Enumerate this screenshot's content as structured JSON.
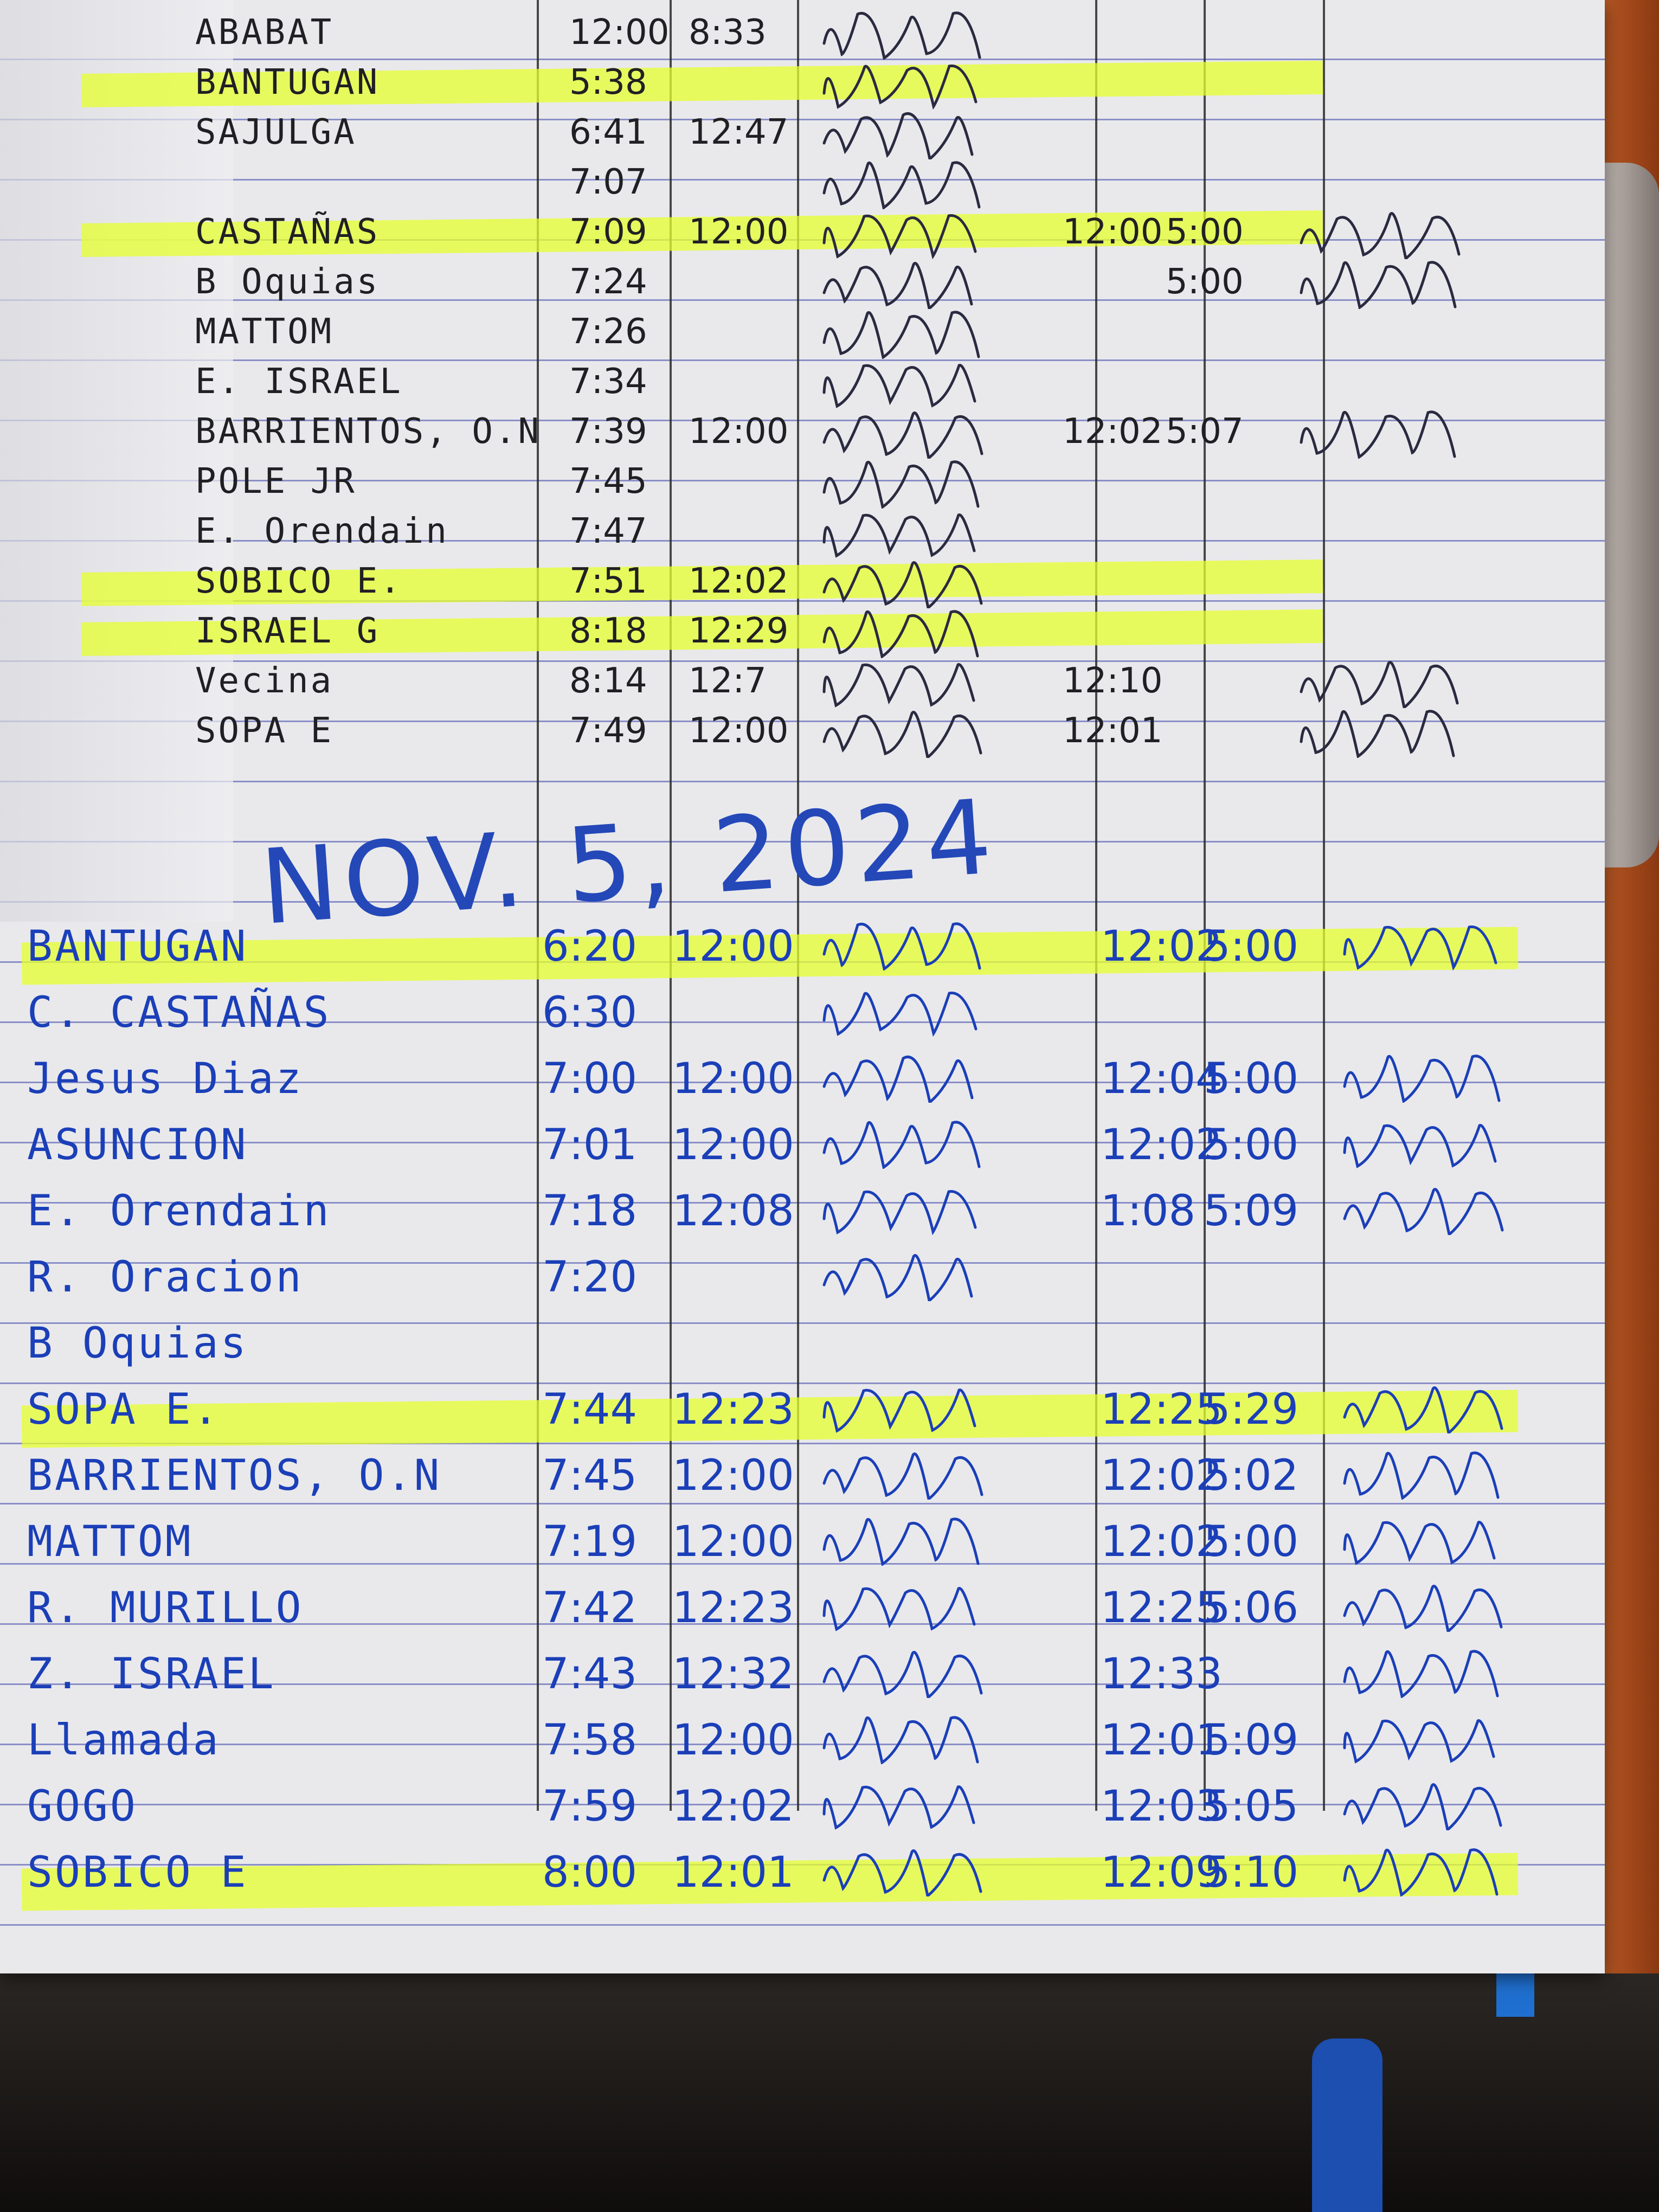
{
  "colors": {
    "ink_top": "#202024",
    "ink_bottom": "#1b3fb8",
    "highlighter": "#e6ff2e",
    "cover": "#1f6fd0"
  },
  "top_rows": [
    {
      "name": "ABABAT",
      "in": "12:00",
      "out": "8:33",
      "in2": "",
      "out2": "",
      "highlight": false
    },
    {
      "name": "BANTUGAN",
      "in": "5:38",
      "out": "",
      "in2": "",
      "out2": "",
      "highlight": true
    },
    {
      "name": "SAJULGA",
      "in": "6:41",
      "out": "12:47",
      "in2": "",
      "out2": "",
      "highlight": false
    },
    {
      "name": "",
      "in": "7:07",
      "out": "",
      "in2": "",
      "out2": "",
      "highlight": false
    },
    {
      "name": "CASTAÑAS",
      "in": "7:09",
      "out": "12:00",
      "in2": "12:00",
      "out2": "5:00",
      "highlight": true
    },
    {
      "name": "B Oquias",
      "in": "7:24",
      "out": "",
      "in2": "",
      "out2": "5:00",
      "highlight": false
    },
    {
      "name": "MATTOM",
      "in": "7:26",
      "out": "",
      "in2": "",
      "out2": "",
      "highlight": false
    },
    {
      "name": "E. ISRAEL",
      "in": "7:34",
      "out": "",
      "in2": "",
      "out2": "",
      "highlight": false
    },
    {
      "name": "BARRIENTOS, O.N",
      "in": "7:39",
      "out": "12:00",
      "in2": "12:02",
      "out2": "5:07",
      "highlight": false
    },
    {
      "name": "POLE JR",
      "in": "7:45",
      "out": "",
      "in2": "",
      "out2": "",
      "highlight": false
    },
    {
      "name": "E. Orendain",
      "in": "7:47",
      "out": "",
      "in2": "",
      "out2": "",
      "highlight": false
    },
    {
      "name": "SOBICO E.",
      "in": "7:51",
      "out": "12:02",
      "in2": "",
      "out2": "",
      "highlight": true
    },
    {
      "name": "ISRAEL G",
      "in": "8:18",
      "out": "12:29",
      "in2": "",
      "out2": "",
      "highlight": true
    },
    {
      "name": "Vecina",
      "in": "8:14",
      "out": "12:7",
      "in2": "12:10",
      "out2": "",
      "highlight": false
    },
    {
      "name": "SOPA E",
      "in": "7:49",
      "out": "12:00",
      "in2": "12:01",
      "out2": "",
      "highlight": false
    }
  ],
  "date_heading": "NOV. 5, 2024",
  "bottom_rows": [
    {
      "name": "BANTUGAN",
      "in": "6:20",
      "out": "12:00",
      "in2": "12:02",
      "out2": "5:00",
      "highlight": true
    },
    {
      "name": "C. CASTAÑAS",
      "in": "6:30",
      "out": "",
      "in2": "",
      "out2": "",
      "highlight": false
    },
    {
      "name": "Jesus Diaz",
      "in": "7:00",
      "out": "12:00",
      "in2": "12:04",
      "out2": "5:00",
      "highlight": false
    },
    {
      "name": "ASUNCION",
      "in": "7:01",
      "out": "12:00",
      "in2": "12:02",
      "out2": "5:00",
      "highlight": false
    },
    {
      "name": "E. Orendain",
      "in": "7:18",
      "out": "12:08",
      "in2": "1:08",
      "out2": "5:09",
      "highlight": false
    },
    {
      "name": "R. Oracion",
      "in": "7:20",
      "out": "",
      "in2": "",
      "out2": "",
      "highlight": false
    },
    {
      "name": "B Oquias",
      "in": "",
      "out": "",
      "in2": "",
      "out2": "",
      "highlight": false
    },
    {
      "name": "SOPA E.",
      "in": "7:44",
      "out": "12:23",
      "in2": "12:25",
      "out2": "5:29",
      "highlight": true
    },
    {
      "name": "BARRIENTOS, O.N",
      "in": "7:45",
      "out": "12:00",
      "in2": "12:02",
      "out2": "5:02",
      "highlight": false
    },
    {
      "name": "MATTOM",
      "in": "7:19",
      "out": "12:00",
      "in2": "12:02",
      "out2": "5:00",
      "highlight": false
    },
    {
      "name": "R. MURILLO",
      "in": "7:42",
      "out": "12:23",
      "in2": "12:25",
      "out2": "5:06",
      "highlight": false
    },
    {
      "name": "Z. ISRAEL",
      "in": "7:43",
      "out": "12:32",
      "in2": "12:33",
      "out2": "",
      "highlight": false
    },
    {
      "name": "Llamada",
      "in": "7:58",
      "out": "12:00",
      "in2": "12:01",
      "out2": "5:09",
      "highlight": false
    },
    {
      "name": "GOGO",
      "in": "7:59",
      "out": "12:02",
      "in2": "12:03",
      "out2": "5:05",
      "highlight": false
    },
    {
      "name": "SOBICO E",
      "in": "8:00",
      "out": "12:01",
      "in2": "12:09",
      "out2": "5:10",
      "highlight": true
    }
  ]
}
